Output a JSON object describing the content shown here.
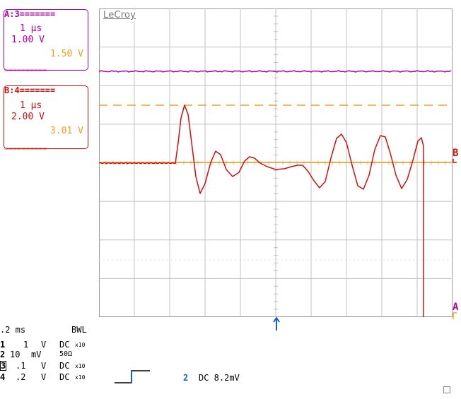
{
  "colors": {
    "trace_a": "#b000a8",
    "trace_b": "#d01010",
    "reference": "#f0a020",
    "channel2": "#1060d0",
    "grid": "#c0c0c0"
  },
  "trace_a": {
    "header": "A:3=======",
    "timebase": "1 µs",
    "volts_per_div": "1.00 V",
    "offset": "1.50 V",
    "footer": "=========="
  },
  "trace_b": {
    "header": "B:4=======",
    "timebase": "1 µs",
    "volts_per_div": "2.00 V",
    "offset": "3.01 V",
    "footer": "=========="
  },
  "screen": {
    "brand": "LeCroy",
    "marker_b": "B",
    "marker_a": "A"
  },
  "timebase": {
    "value": ".2 ms",
    "bwl": "BWL"
  },
  "channels": [
    {
      "num": "1",
      "scale": "1",
      "unit": "V",
      "coupling": "DC",
      "probe": "x10"
    },
    {
      "num": "2",
      "scale": "10",
      "unit": "mV",
      "coupling": "50Ω",
      "probe": ""
    },
    {
      "num": "3",
      "scale": ".1",
      "unit": "V",
      "coupling": "DC",
      "probe": "x10"
    },
    {
      "num": "4",
      "scale": ".2",
      "unit": "V",
      "coupling": "DC",
      "probe": "x10"
    }
  ],
  "trigger": {
    "source": "2",
    "text": "DC 8.2mV"
  }
}
